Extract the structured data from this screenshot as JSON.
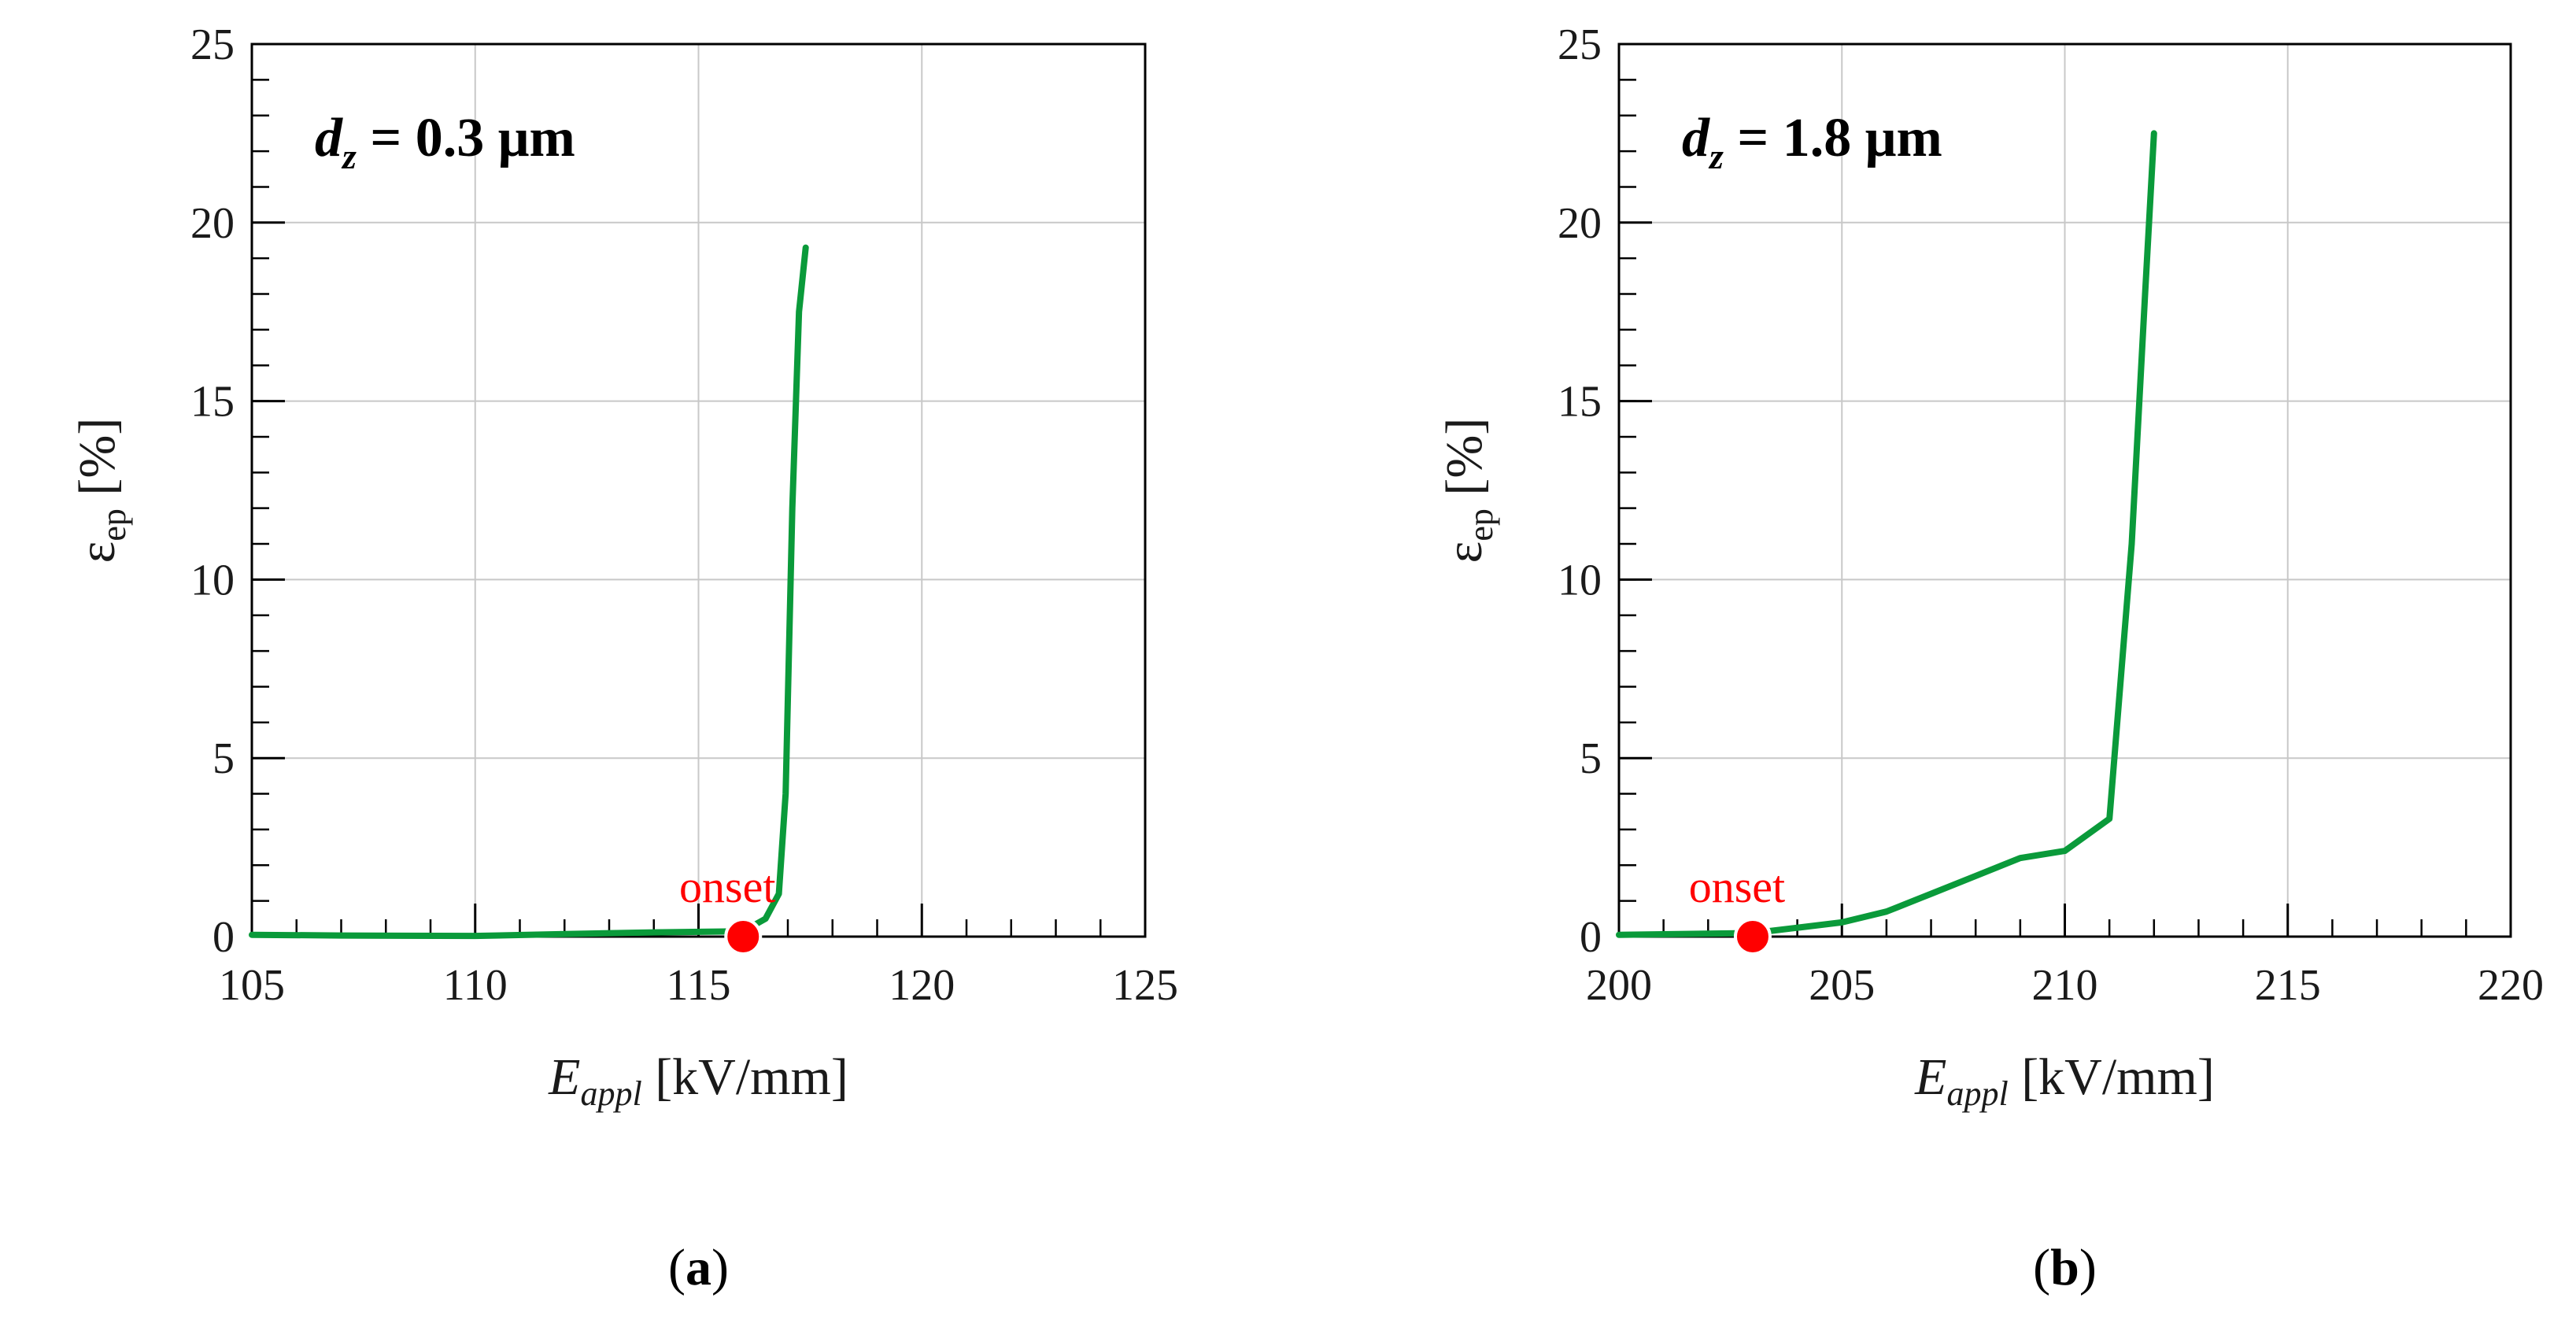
{
  "chart_data": [
    {
      "type": "line",
      "panel_label": "(a)",
      "panel_letter": "a",
      "annotation": {
        "variable": "d",
        "subscript": "z",
        "value_text": " = 0.3 μm"
      },
      "xlabel": {
        "main": "E",
        "sub": "appl",
        "unit": " [kV/mm]"
      },
      "ylabel": {
        "main": "ε",
        "sub": "ep",
        "unit": " [%]"
      },
      "xlim": [
        105,
        125
      ],
      "ylim": [
        0,
        25
      ],
      "x_major_ticks": [
        105,
        110,
        115,
        120,
        125
      ],
      "x_tick_labels": [
        "105",
        "110",
        "115",
        "120",
        "125"
      ],
      "x_minor_step": 1,
      "y_major_ticks": [
        0,
        5,
        10,
        15,
        20,
        25
      ],
      "y_tick_labels": [
        "0",
        "5",
        "10",
        "15",
        "20",
        "25"
      ],
      "y_minor_step": 1,
      "grid": true,
      "series": [
        {
          "name": "epsilon_ep",
          "color": "#0a9a3a",
          "x": [
            105,
            107,
            110,
            112,
            114,
            116,
            116.5,
            116.8,
            116.95,
            117.1,
            117.25,
            117.4
          ],
          "y": [
            0.05,
            0.03,
            0.02,
            0.07,
            0.12,
            0.15,
            0.5,
            1.2,
            4.0,
            12.0,
            17.5,
            19.3
          ]
        }
      ],
      "onset": {
        "x": 116.0,
        "y": 0,
        "label": "onset",
        "color": "#ff0000"
      }
    },
    {
      "type": "line",
      "panel_label": "(b)",
      "panel_letter": "b",
      "annotation": {
        "variable": "d",
        "subscript": "z",
        "value_text": " = 1.8 μm"
      },
      "xlabel": {
        "main": "E",
        "sub": "appl",
        "unit": " [kV/mm]"
      },
      "ylabel": {
        "main": "ε",
        "sub": "ep",
        "unit": " [%]"
      },
      "xlim": [
        200,
        220
      ],
      "ylim": [
        0,
        25
      ],
      "x_major_ticks": [
        200,
        205,
        210,
        215,
        220
      ],
      "x_tick_labels": [
        "200",
        "205",
        "210",
        "215",
        "220"
      ],
      "x_minor_step": 1,
      "y_major_ticks": [
        0,
        5,
        10,
        15,
        20,
        25
      ],
      "y_tick_labels": [
        "0",
        "5",
        "10",
        "15",
        "20",
        "25"
      ],
      "y_minor_step": 1,
      "grid": true,
      "series": [
        {
          "name": "epsilon_ep",
          "color": "#0a9a3a",
          "x": [
            200,
            203,
            204,
            205,
            206,
            207,
            208,
            209,
            210,
            211,
            211.5,
            211.8,
            212
          ],
          "y": [
            0.05,
            0.1,
            0.25,
            0.4,
            0.7,
            1.2,
            1.7,
            2.2,
            2.4,
            3.3,
            11.0,
            18.0,
            22.5
          ]
        }
      ],
      "onset": {
        "x": 203.0,
        "y": 0,
        "label": "onset",
        "color": "#ff0000"
      }
    }
  ]
}
